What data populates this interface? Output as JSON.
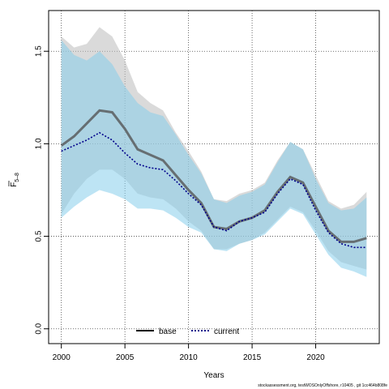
{
  "chart_data": {
    "type": "line",
    "xlabel": "Years",
    "ylabel_main": "F",
    "ylabel_sub": "5–8",
    "xlim": [
      1999,
      2025
    ],
    "ylim": [
      -0.08,
      1.72
    ],
    "x_ticks": [
      2000,
      2005,
      2010,
      2015,
      2020
    ],
    "y_ticks": [
      0.0,
      0.5,
      1.0,
      1.5
    ],
    "y_tick_labels": [
      "0.0",
      "0.5",
      "1.0",
      "1.5"
    ],
    "grid": true,
    "legend_position": "bottom-center",
    "footnote": "stockassessment.org, testWOSOnlyOffshore, r10405 , git 1cc464b808fe",
    "x": [
      2000,
      2001,
      2002,
      2003,
      2004,
      2005,
      2006,
      2007,
      2008,
      2009,
      2010,
      2011,
      2012,
      2013,
      2014,
      2015,
      2016,
      2017,
      2018,
      2019,
      2020,
      2021,
      2022,
      2023,
      2024
    ],
    "series": [
      {
        "name": "base",
        "color": "#555555",
        "band_color": "#bbbbbb",
        "line_style": "solid",
        "values": [
          0.99,
          1.04,
          1.11,
          1.18,
          1.17,
          1.08,
          0.97,
          0.94,
          0.91,
          0.83,
          0.75,
          0.68,
          0.55,
          0.54,
          0.58,
          0.6,
          0.64,
          0.74,
          0.82,
          0.79,
          0.66,
          0.53,
          0.47,
          0.47,
          0.49
        ],
        "lower": [
          0.62,
          0.73,
          0.81,
          0.86,
          0.86,
          0.81,
          0.73,
          0.71,
          0.7,
          0.65,
          0.58,
          0.53,
          0.43,
          0.43,
          0.46,
          0.48,
          0.52,
          0.59,
          0.66,
          0.63,
          0.53,
          0.42,
          0.36,
          0.34,
          0.32
        ],
        "upper": [
          1.58,
          1.52,
          1.54,
          1.63,
          1.58,
          1.45,
          1.28,
          1.22,
          1.18,
          1.06,
          0.96,
          0.85,
          0.7,
          0.69,
          0.73,
          0.75,
          0.79,
          0.91,
          1.01,
          0.97,
          0.83,
          0.69,
          0.65,
          0.67,
          0.74
        ]
      },
      {
        "name": "current",
        "color": "#00008b",
        "band_color": "#87ceeb",
        "line_style": "dotted",
        "values": [
          0.96,
          0.99,
          1.02,
          1.06,
          1.02,
          0.95,
          0.89,
          0.87,
          0.86,
          0.8,
          0.73,
          0.67,
          0.55,
          0.53,
          0.58,
          0.6,
          0.63,
          0.73,
          0.81,
          0.78,
          0.64,
          0.52,
          0.46,
          0.44,
          0.44
        ],
        "lower": [
          0.6,
          0.66,
          0.71,
          0.75,
          0.73,
          0.7,
          0.65,
          0.65,
          0.64,
          0.6,
          0.55,
          0.52,
          0.43,
          0.42,
          0.46,
          0.48,
          0.51,
          0.58,
          0.65,
          0.62,
          0.51,
          0.4,
          0.33,
          0.31,
          0.28
        ],
        "upper": [
          1.56,
          1.48,
          1.45,
          1.5,
          1.43,
          1.31,
          1.22,
          1.17,
          1.15,
          1.05,
          0.94,
          0.84,
          0.7,
          0.68,
          0.72,
          0.74,
          0.78,
          0.9,
          1.01,
          0.97,
          0.81,
          0.68,
          0.64,
          0.65,
          0.71
        ]
      }
    ]
  }
}
